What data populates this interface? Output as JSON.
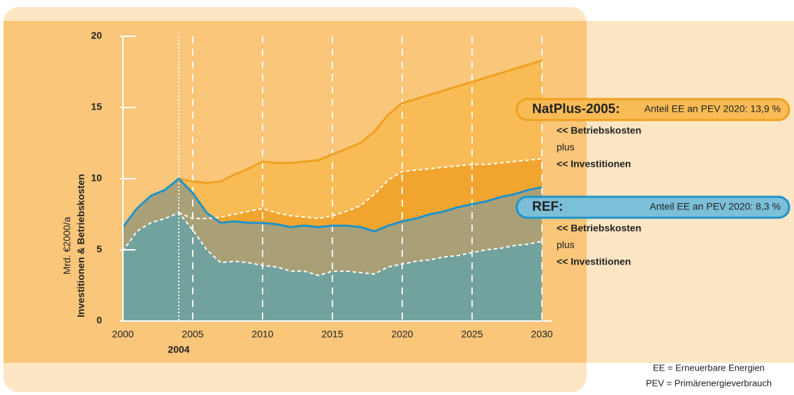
{
  "chart_data": {
    "type": "area",
    "ylabel": "Investitionen & Betriebskosten",
    "yunit": "Mrd. €2000/a",
    "x": [
      2000,
      2001,
      2002,
      2003,
      2004,
      2005,
      2006,
      2007,
      2008,
      2009,
      2010,
      2011,
      2012,
      2013,
      2014,
      2015,
      2016,
      2017,
      2018,
      2019,
      2020,
      2021,
      2022,
      2023,
      2024,
      2025,
      2026,
      2027,
      2028,
      2029,
      2030
    ],
    "series": [
      {
        "color": "#f0a020",
        "fill": "#f8bb55",
        "style": "solid",
        "values": [
          null,
          null,
          null,
          null,
          10.0,
          9.8,
          9.7,
          9.8,
          10.3,
          10.7,
          11.2,
          11.1,
          11.1,
          11.2,
          11.3,
          11.7,
          12.1,
          12.5,
          13.3,
          14.5,
          15.3,
          15.6,
          15.9,
          16.2,
          16.5,
          16.8,
          17.1,
          17.4,
          17.7,
          18.0,
          18.3
        ]
      },
      {
        "color": "#ffffff",
        "fill": "#f2a52e",
        "style": "dashed",
        "values": [
          null,
          null,
          null,
          null,
          7.6,
          7.2,
          7.2,
          7.3,
          7.5,
          7.7,
          7.9,
          7.6,
          7.4,
          7.3,
          7.2,
          7.4,
          7.7,
          8.1,
          8.9,
          9.9,
          10.5,
          10.6,
          10.7,
          10.8,
          10.9,
          11.0,
          11.0,
          11.1,
          11.2,
          11.3,
          11.4
        ]
      },
      {
        "color": "#1e93c8",
        "fill": "#a9a078",
        "style": "solid",
        "values": [
          6.6,
          7.9,
          8.8,
          9.2,
          10.0,
          9.0,
          7.6,
          6.9,
          7.0,
          6.9,
          6.9,
          6.8,
          6.6,
          6.7,
          6.6,
          6.7,
          6.7,
          6.6,
          6.3,
          6.7,
          7.0,
          7.2,
          7.5,
          7.7,
          8.0,
          8.2,
          8.4,
          8.7,
          8.9,
          9.2,
          9.4
        ]
      },
      {
        "color": "#ffffff",
        "fill": "#72a29e",
        "style": "dashed",
        "values": [
          4.9,
          6.3,
          6.9,
          7.2,
          7.6,
          6.4,
          5.0,
          4.1,
          4.2,
          4.1,
          3.9,
          3.8,
          3.5,
          3.5,
          3.2,
          3.5,
          3.5,
          3.4,
          3.3,
          3.8,
          4.0,
          4.2,
          4.3,
          4.5,
          4.6,
          4.8,
          5.0,
          5.1,
          5.3,
          5.4,
          5.6
        ]
      }
    ],
    "xlim": [
      2000,
      2031
    ],
    "xticks": [
      2000,
      2005,
      2010,
      2015,
      2020,
      2025,
      2030
    ],
    "ylim": [
      0,
      20
    ],
    "yticks": [
      0,
      5,
      10,
      15,
      20
    ],
    "highlight_x": 2004,
    "annotations": [
      {
        "title": "NatPlus-2005:",
        "note": "Anteil EE an PEV 2020: 13,9 %",
        "color": "#f0a020",
        "fill": "#f8bb55",
        "lines": [
          "<< Betriebskosten",
          "plus",
          "<< Investitionen"
        ]
      },
      {
        "title": "REF:",
        "note": "Anteil EE an PEV 2020: 8,3 %",
        "color": "#1e93c8",
        "fill": "#7cbfd8",
        "lines": [
          "<< Betriebskosten",
          "plus",
          "<< Investitionen"
        ]
      }
    ],
    "footnotes": [
      "EE   = Erneuerbare Energien",
      "PEV = Primärenergieverbrauch"
    ]
  }
}
